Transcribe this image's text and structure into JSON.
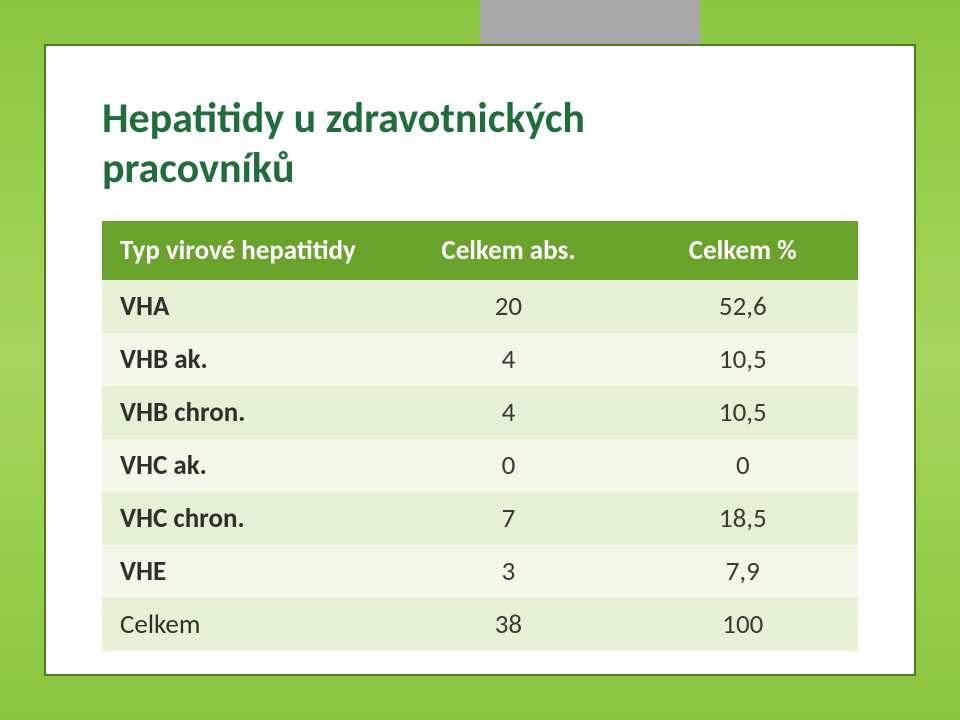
{
  "background_gradient": [
    "#8cc63f",
    "#a4d65e",
    "#8cc63f"
  ],
  "card": {
    "border_color": "#4d7a1a",
    "background": "#ffffff"
  },
  "title_lines": {
    "l1": "Hepatitidy u zdravotnických",
    "l2": "pracovníků"
  },
  "title_color": "#1f6e3a",
  "title_fontsize": 42,
  "table": {
    "header_bg": "#6aa32b",
    "header_fg": "#ffffff",
    "row_odd_bg": "#e6f0d5",
    "row_even_bg": "#f3f8e9",
    "cell_fontsize": 27,
    "columns": {
      "c1": "Typ virové hepatitidy",
      "c2": "Celkem  abs.",
      "c3": "Celkem %"
    },
    "column_widths_pct": [
      38,
      31,
      31
    ],
    "rows": [
      {
        "label": "VHA",
        "abs": "20",
        "pct": "52,6"
      },
      {
        "label": "VHB ak.",
        "abs": "4",
        "pct": "10,5"
      },
      {
        "label": "VHB chron.",
        "abs": "4",
        "pct": "10,5"
      },
      {
        "label": "VHC ak.",
        "abs": "0",
        "pct": "0"
      },
      {
        "label": "VHC chron.",
        "abs": "7",
        "pct": "18,5"
      },
      {
        "label": "VHE",
        "abs": "3",
        "pct": "7,9"
      },
      {
        "label": "Celkem",
        "abs": "38",
        "pct": "100"
      }
    ]
  }
}
